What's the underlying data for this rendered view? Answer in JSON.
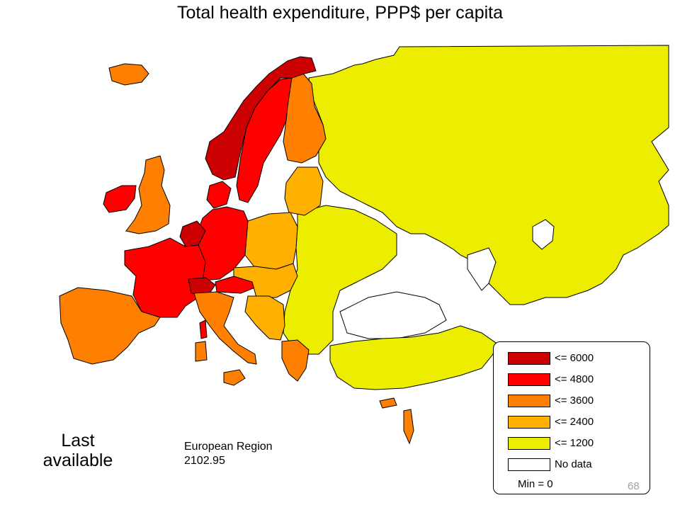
{
  "title": "Total health expenditure, PPP$ per capita",
  "note": {
    "line1": "Last",
    "line2": "available"
  },
  "region": {
    "label": "European Region",
    "value": "2102.95"
  },
  "legend": {
    "items": [
      {
        "label": "<= 6000",
        "color": "#cc0000"
      },
      {
        "label": "<= 4800",
        "color": "#ff0000"
      },
      {
        "label": "<= 3600",
        "color": "#ff8000"
      },
      {
        "label": "<= 2400",
        "color": "#ffb000"
      },
      {
        "label": "<= 1200",
        "color": "#eded00"
      },
      {
        "label": "No data",
        "color": "#ffffff"
      }
    ],
    "min_label": "Min = 0"
  },
  "page_number": "68",
  "colors": {
    "c6000": "#cc0000",
    "c4800": "#ff0000",
    "c3600": "#ff8000",
    "c2400": "#ffb000",
    "c1200": "#eded00",
    "nodata": "#ffffff"
  }
}
